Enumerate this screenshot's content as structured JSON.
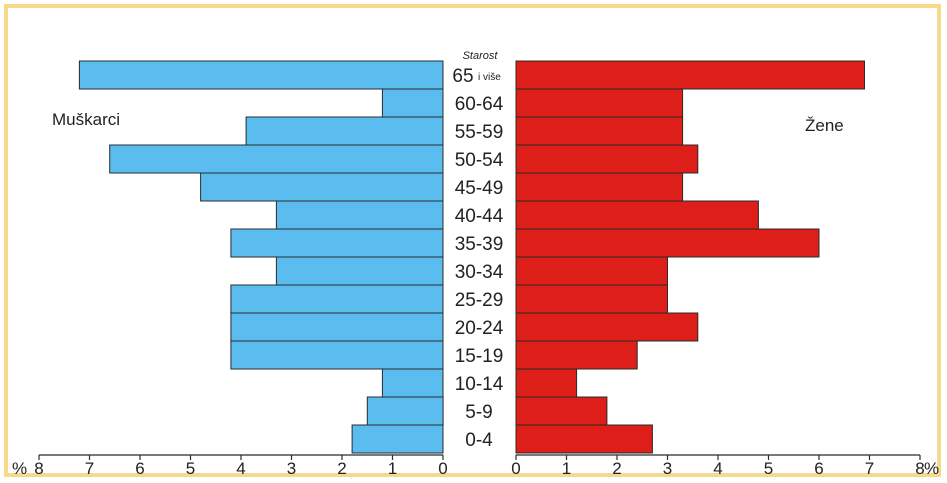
{
  "chart_data": {
    "type": "bar",
    "orientation": "horizontal",
    "subtype": "population-pyramid",
    "axis_title": "Starost",
    "age_groups": [
      "65",
      "60-64",
      "55-59",
      "50-54",
      "45-49",
      "40-44",
      "35-39",
      "30-34",
      "25-29",
      "20-24",
      "15-19",
      "10-14",
      "5-9",
      "0-4"
    ],
    "top_group_suffix": "i više",
    "series": [
      {
        "name": "Muškarci",
        "side": "left",
        "color": "#5bbcf0",
        "values": [
          7.2,
          1.2,
          3.9,
          6.6,
          4.8,
          3.3,
          4.2,
          3.3,
          4.2,
          4.2,
          4.2,
          1.2,
          1.5,
          1.8
        ]
      },
      {
        "name": "Žene",
        "side": "right",
        "color": "#dd1e19",
        "values": [
          6.9,
          3.3,
          3.3,
          3.6,
          3.3,
          4.8,
          6.0,
          3.0,
          3.0,
          3.6,
          2.4,
          1.2,
          1.8,
          2.7
        ]
      }
    ],
    "x_unit_label": "%",
    "left_axis": {
      "range": [
        0,
        8
      ],
      "ticks": [
        "8",
        "7",
        "6",
        "5",
        "4",
        "3",
        "2",
        "1",
        "0"
      ]
    },
    "right_axis": {
      "range": [
        0,
        8
      ],
      "ticks": [
        "0",
        "1",
        "2",
        "3",
        "4",
        "5",
        "6",
        "7",
        "8"
      ]
    },
    "grid": false
  }
}
